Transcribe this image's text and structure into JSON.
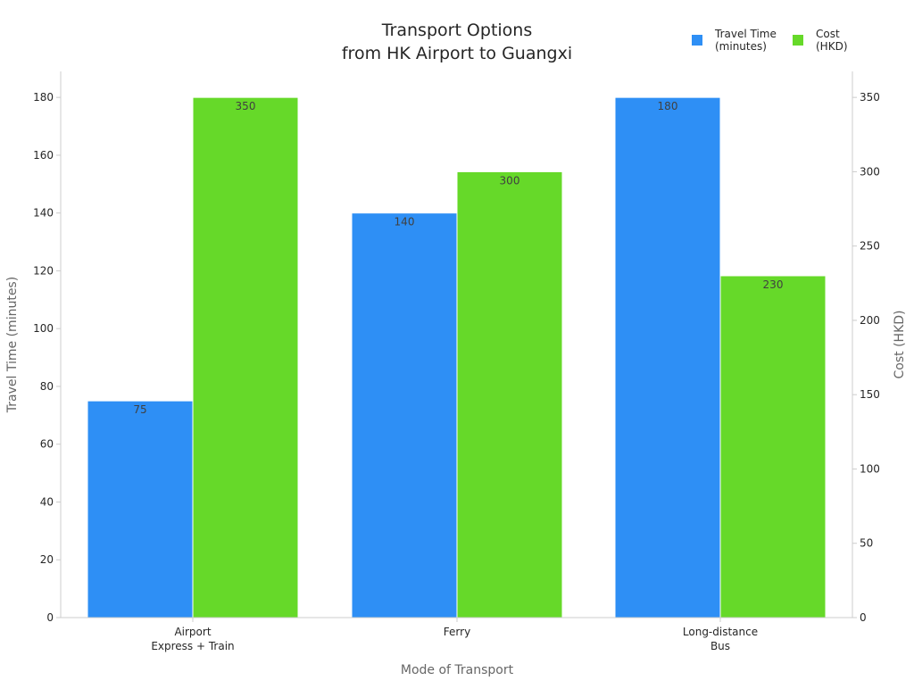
{
  "chart_data": {
    "type": "bar",
    "title_lines": [
      "Transport Options",
      "from HK Airport to Guangxi"
    ],
    "xlabel": "Mode of Transport",
    "ylabel": "Travel Time (minutes)",
    "y2label": "Cost (HKD)",
    "categories": [
      [
        "Airport",
        "Express + Train"
      ],
      [
        "Ferry"
      ],
      [
        "Long-distance",
        "Bus"
      ]
    ],
    "series": [
      {
        "name_lines": [
          "Travel Time",
          "(minutes)"
        ],
        "axis": "left",
        "color": "#2e8ff5",
        "values": [
          75,
          140,
          180
        ]
      },
      {
        "name_lines": [
          "Cost",
          "(HKD)"
        ],
        "axis": "right",
        "color": "#66d929",
        "values": [
          350,
          300,
          230
        ]
      }
    ],
    "ylim": [
      0,
      189
    ],
    "y2lim": [
      0,
      367.5
    ],
    "yticks": [
      0,
      20,
      40,
      60,
      80,
      100,
      120,
      140,
      160,
      180
    ],
    "y2ticks": [
      0,
      50,
      100,
      150,
      200,
      250,
      300,
      350
    ],
    "legend_position": "top-right",
    "grid": false
  }
}
